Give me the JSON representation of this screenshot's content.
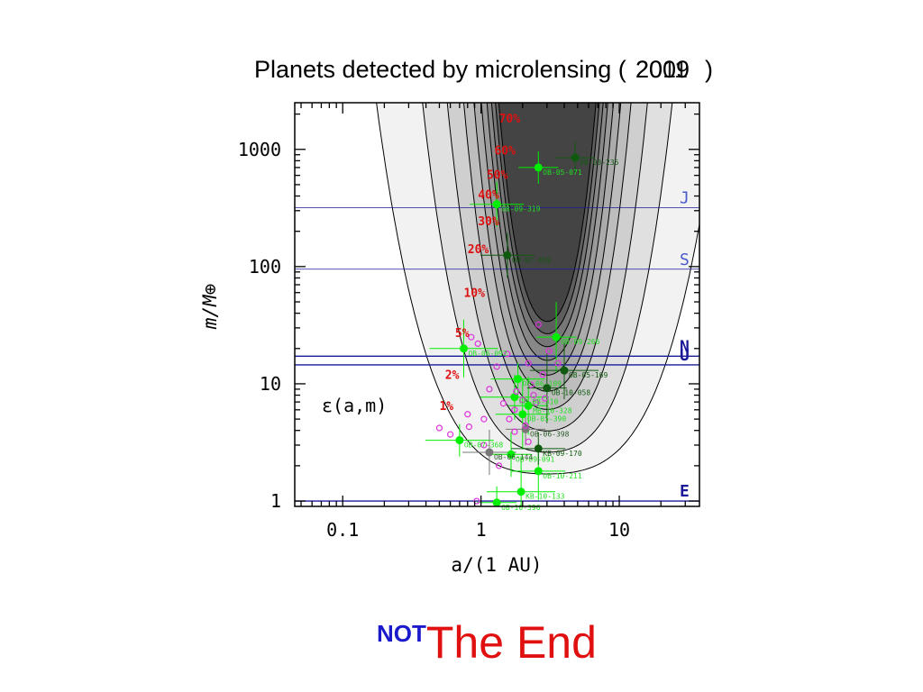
{
  "title": {
    "main": "Planets detected by microlensing (",
    "year_a": "2009",
    "year_b": "2011",
    "close": ")"
  },
  "footer": {
    "not": "NOT",
    "end": "The End"
  },
  "chart_data": {
    "type": "scatter",
    "title": "Planets detected by microlensing (2009)",
    "xlabel": "a/(1 AU)",
    "ylabel": "m/M⊕",
    "xscale": "log",
    "yscale": "log",
    "xlim": [
      0.045,
      38
    ],
    "ylim": [
      0.9,
      2500
    ],
    "x_ticks": [
      {
        "value": 0.1,
        "label": "0.1"
      },
      {
        "value": 1,
        "label": "1"
      },
      {
        "value": 10,
        "label": "10"
      }
    ],
    "y_ticks": [
      {
        "value": 1,
        "label": "1"
      },
      {
        "value": 10,
        "label": "10"
      },
      {
        "value": 100,
        "label": "100"
      },
      {
        "value": 1000,
        "label": "1000"
      }
    ],
    "efficiency_label": "ε(a,m)",
    "contour_labels": [
      {
        "text": "70%",
        "a": 1.35,
        "m": 1700
      },
      {
        "text": "60%",
        "a": 1.25,
        "m": 900
      },
      {
        "text": "50%",
        "a": 1.1,
        "m": 560
      },
      {
        "text": "40%",
        "a": 0.95,
        "m": 380
      },
      {
        "text": "30%",
        "a": 0.95,
        "m": 225
      },
      {
        "text": "20%",
        "a": 0.8,
        "m": 130
      },
      {
        "text": "10%",
        "a": 0.75,
        "m": 55
      },
      {
        "text": "5%",
        "a": 0.65,
        "m": 25
      },
      {
        "text": "2%",
        "a": 0.55,
        "m": 11
      },
      {
        "text": "1%",
        "a": 0.5,
        "m": 6
      }
    ],
    "solar_system": [
      {
        "name": "J",
        "m": 318,
        "color": "#1a1a99"
      },
      {
        "name": "S",
        "m": 95,
        "color": "#1a1a99"
      },
      {
        "name": "N",
        "m": 17.2,
        "color": "#1a1a99"
      },
      {
        "name": "U",
        "m": 14.5,
        "color": "#1a1a99"
      },
      {
        "name": "E",
        "m": 1.0,
        "color": "#1a1a99"
      }
    ],
    "series": [
      {
        "name": "detected planets (bright green)",
        "color": "#00ee00",
        "points": [
          {
            "a": 2.6,
            "m": 700,
            "label": "OB-05-071"
          },
          {
            "a": 1.3,
            "m": 340,
            "label": "OB-09-319"
          },
          {
            "a": 0.75,
            "m": 20,
            "label": "OB-06-092"
          },
          {
            "a": 3.5,
            "m": 25,
            "label": "OB-09-266"
          },
          {
            "a": 1.85,
            "m": 11,
            "label": "OB-06-109"
          },
          {
            "a": 1.75,
            "m": 7.7,
            "label": "OB-08-310"
          },
          {
            "a": 2.2,
            "m": 6.5,
            "label": "MB-10-328"
          },
          {
            "a": 2.0,
            "m": 5.5,
            "label": "OB-05-390"
          },
          {
            "a": 0.7,
            "m": 3.3,
            "label": "OB-07-368"
          },
          {
            "a": 1.65,
            "m": 2.5,
            "label": "OB-09-091"
          },
          {
            "a": 2.6,
            "m": 1.8,
            "label": "OB-10-211"
          },
          {
            "a": 1.95,
            "m": 1.2,
            "label": "KB-10-133"
          },
          {
            "a": 1.3,
            "m": 0.97,
            "label": "OB-10-396"
          }
        ]
      },
      {
        "name": "detected planets (dark green)",
        "color": "#0f5a0f",
        "points": [
          {
            "a": 4.8,
            "m": 850,
            "label": "OB-03-235"
          },
          {
            "a": 1.55,
            "m": 125,
            "label": "OB-07-459"
          },
          {
            "a": 4.0,
            "m": 13,
            "label": "OB-05-169"
          },
          {
            "a": 3.0,
            "m": 9.2,
            "label": "OB-10-058"
          },
          {
            "a": 2.6,
            "m": 2.8,
            "label": "KB-09-170"
          }
        ]
      },
      {
        "name": "detected planets (grey)",
        "color": "#777777",
        "points": [
          {
            "a": 2.1,
            "m": 4.1,
            "label": "OB-06-398"
          },
          {
            "a": 1.15,
            "m": 2.6,
            "label": "OB-06-144"
          }
        ]
      },
      {
        "name": "candidates (magenta)",
        "color": "#dd33dd",
        "points": [
          {
            "a": 0.85,
            "m": 25
          },
          {
            "a": 0.95,
            "m": 22
          },
          {
            "a": 1.3,
            "m": 14
          },
          {
            "a": 1.55,
            "m": 18
          },
          {
            "a": 2.6,
            "m": 32
          },
          {
            "a": 3.1,
            "m": 19
          },
          {
            "a": 2.2,
            "m": 15
          },
          {
            "a": 3.6,
            "m": 15
          },
          {
            "a": 1.15,
            "m": 9
          },
          {
            "a": 1.45,
            "m": 6.8
          },
          {
            "a": 1.75,
            "m": 6.0
          },
          {
            "a": 2.0,
            "m": 7.3
          },
          {
            "a": 2.4,
            "m": 8.0
          },
          {
            "a": 2.5,
            "m": 6.9
          },
          {
            "a": 2.9,
            "m": 7.5
          },
          {
            "a": 1.05,
            "m": 5.0
          },
          {
            "a": 1.6,
            "m": 5.0
          },
          {
            "a": 2.1,
            "m": 4.4
          },
          {
            "a": 1.75,
            "m": 3.9
          },
          {
            "a": 2.2,
            "m": 3.2
          },
          {
            "a": 0.8,
            "m": 5.5
          },
          {
            "a": 0.82,
            "m": 4.3
          },
          {
            "a": 1.05,
            "m": 3.0
          },
          {
            "a": 1.35,
            "m": 2.0
          },
          {
            "a": 0.5,
            "m": 4.2
          },
          {
            "a": 0.6,
            "m": 3.7
          },
          {
            "a": 0.93,
            "m": 1.0
          },
          {
            "a": 2.3,
            "m": 9.8
          },
          {
            "a": 2.8,
            "m": 12
          },
          {
            "a": 1.8,
            "m": 8.6
          }
        ]
      }
    ]
  }
}
